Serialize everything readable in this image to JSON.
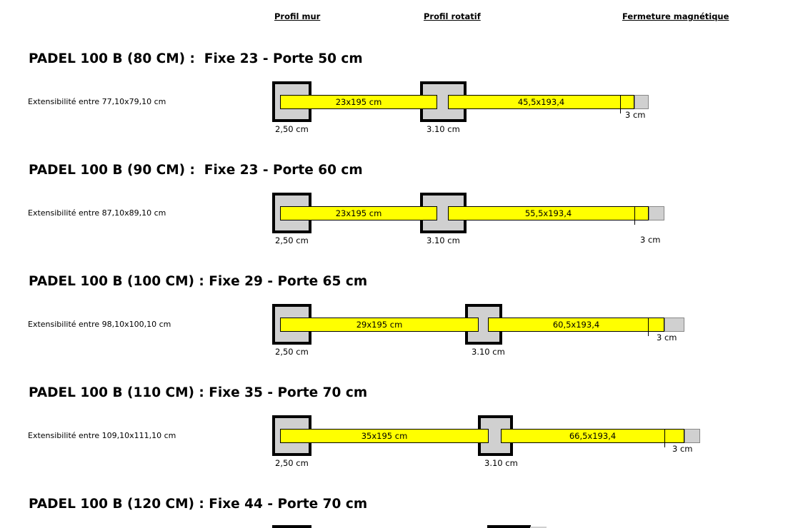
{
  "headers": {
    "wall_profile": "Profil mur",
    "rotating_profile": "Profil rotatif",
    "magnetic_closure": "Fermeture magnétique"
  },
  "colors": {
    "panel": "#ffff00",
    "profile": "#d0d0d0",
    "border": "#000000"
  },
  "rows": [
    {
      "title": "PADEL 100 B (80 CM) :  Fixe 23 - Porte 50 cm",
      "extensibility": "Extensibilité entre 77,10x79,10 cm",
      "fixed_panel": "23x195 cm",
      "door_panel": "45,5x193,4",
      "wall_label": "2,50 cm",
      "rotating_label": "3.10 cm",
      "closure_label": "3 cm"
    },
    {
      "title": "PADEL 100 B (90 CM) :  Fixe 23 - Porte 60 cm",
      "extensibility": "Extensibilité entre 87,10x89,10 cm",
      "fixed_panel": "23x195 cm",
      "door_panel": "55,5x193,4",
      "wall_label": "2,50 cm",
      "rotating_label": "3.10 cm",
      "closure_label": "3 cm"
    },
    {
      "title": "PADEL 100 B (100 CM) : Fixe 29 - Porte 65 cm",
      "extensibility": "Extensibilité entre 98,10x100,10 cm",
      "fixed_panel": "29x195 cm",
      "door_panel": "60,5x193,4",
      "wall_label": "2,50 cm",
      "rotating_label": "3.10 cm",
      "closure_label": "3 cm"
    },
    {
      "title": "PADEL 100 B (110 CM) : Fixe 35 - Porte 70 cm",
      "extensibility": "Extensibilité entre 109,10x111,10 cm",
      "fixed_panel": "35x195 cm",
      "door_panel": "66,5x193,4",
      "wall_label": "2,50 cm",
      "rotating_label": "3.10 cm",
      "closure_label": "3 cm"
    },
    {
      "title": "PADEL 100 B (120 CM) : Fixe 44 - Porte 70 cm"
    }
  ]
}
